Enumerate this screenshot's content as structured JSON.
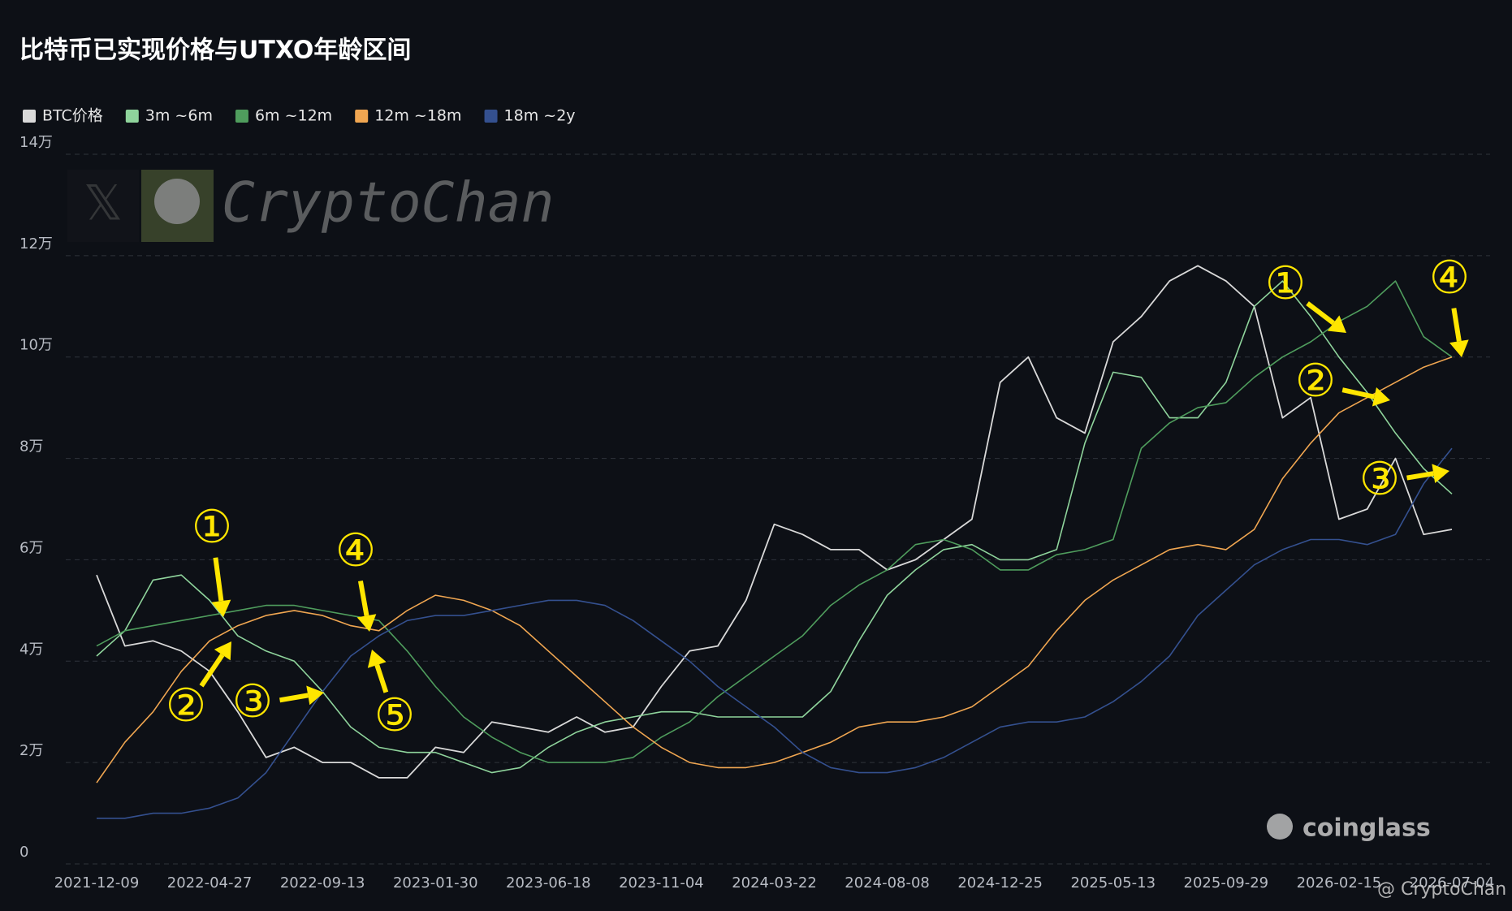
{
  "chart_data": {
    "type": "line",
    "title": "比特币已实现价格与UTXO年龄区间",
    "categories": [
      "2021-12-09",
      null,
      null,
      null,
      "2022-04-27",
      null,
      null,
      null,
      "2022-09-13",
      null,
      null,
      null,
      "2023-01-30",
      null,
      null,
      null,
      "2023-06-18",
      null,
      null,
      null,
      "2023-11-04",
      null,
      null,
      null,
      "2024-03-22",
      null,
      null,
      null,
      "2024-08-08",
      null,
      null,
      null,
      "2024-12-25",
      null,
      null,
      null,
      "2025-05-13",
      null,
      null,
      null,
      "2025-09-29",
      null,
      null,
      null,
      "2026-02-15",
      null,
      null,
      null,
      "2026-07-04"
    ],
    "series": [
      {
        "name": "BTC价格",
        "color": "#d9d9d9",
        "values": [
          57000,
          43000,
          44000,
          42000,
          38000,
          30000,
          21000,
          23000,
          20000,
          20000,
          17000,
          17000,
          23000,
          22000,
          28000,
          27000,
          26000,
          29000,
          26000,
          27000,
          35000,
          42000,
          43000,
          52000,
          67000,
          65000,
          62000,
          62000,
          58000,
          60000,
          64000,
          68000,
          95000,
          100000,
          88000,
          85000,
          103000,
          108000,
          115000,
          118000,
          115000,
          110000,
          88000,
          92000,
          68000,
          70000,
          80000,
          65000,
          66000
        ]
      },
      {
        "name": "3m ~6m",
        "color": "#8fd49c",
        "values": [
          41000,
          46000,
          56000,
          57000,
          52000,
          45000,
          42000,
          40000,
          34000,
          27000,
          23000,
          22000,
          22000,
          20000,
          18000,
          19000,
          23000,
          26000,
          28000,
          29000,
          30000,
          30000,
          29000,
          29000,
          29000,
          29000,
          34000,
          44000,
          53000,
          58000,
          62000,
          63000,
          60000,
          60000,
          62000,
          83000,
          97000,
          96000,
          88000,
          88000,
          95000,
          110000,
          115000,
          108000,
          100000,
          93000,
          85000,
          78000,
          73000
        ]
      },
      {
        "name": "6m ~12m",
        "color": "#4f9d5d",
        "values": [
          43000,
          46000,
          47000,
          48000,
          49000,
          50000,
          51000,
          51000,
          50000,
          49000,
          48000,
          42000,
          35000,
          29000,
          25000,
          22000,
          20000,
          20000,
          20000,
          21000,
          25000,
          28000,
          33000,
          37000,
          41000,
          45000,
          51000,
          55000,
          58000,
          63000,
          64000,
          62000,
          58000,
          58000,
          61000,
          62000,
          64000,
          82000,
          87000,
          90000,
          91000,
          96000,
          100000,
          103000,
          107000,
          110000,
          115000,
          104000,
          100000
        ]
      },
      {
        "name": "12m ~18m",
        "color": "#f0a651",
        "values": [
          16000,
          24000,
          30000,
          38000,
          44000,
          47000,
          49000,
          50000,
          49000,
          47000,
          46000,
          50000,
          53000,
          52000,
          50000,
          47000,
          42000,
          37000,
          32000,
          27000,
          23000,
          20000,
          19000,
          19000,
          20000,
          22000,
          24000,
          27000,
          28000,
          28000,
          29000,
          31000,
          35000,
          39000,
          46000,
          52000,
          56000,
          59000,
          62000,
          63000,
          62000,
          66000,
          76000,
          83000,
          89000,
          92000,
          95000,
          98000,
          100000
        ]
      },
      {
        "name": "18m ~2y",
        "color": "#34508f",
        "values": [
          9000,
          9000,
          10000,
          10000,
          11000,
          13000,
          18000,
          26000,
          34000,
          41000,
          45000,
          48000,
          49000,
          49000,
          50000,
          51000,
          52000,
          52000,
          51000,
          48000,
          44000,
          40000,
          35000,
          31000,
          27000,
          22000,
          19000,
          18000,
          18000,
          19000,
          21000,
          24000,
          27000,
          28000,
          28000,
          29000,
          32000,
          36000,
          41000,
          49000,
          54000,
          59000,
          62000,
          64000,
          64000,
          63000,
          65000,
          75000,
          82000
        ]
      }
    ],
    "ylim": [
      0,
      140000
    ],
    "yticks": [
      0,
      {
        "value": 20000,
        "label": "2万"
      },
      {
        "value": 40000,
        "label": "4万"
      },
      {
        "value": 60000,
        "label": "6万"
      },
      {
        "value": 80000,
        "label": "8万"
      },
      {
        "value": 100000,
        "label": "10万"
      },
      {
        "value": 120000,
        "label": "12万"
      },
      {
        "value": 140000,
        "label": "14万"
      }
    ],
    "grid": true,
    "legend": "top-left",
    "annotation_color": "#ffe600",
    "annotations": [
      "①",
      "②",
      "③",
      "④",
      "⑤",
      "①",
      "②",
      "③",
      "④"
    ],
    "watermark": "CryptoChan",
    "logo": "coinglass",
    "credit": "@ CryptoChan"
  }
}
